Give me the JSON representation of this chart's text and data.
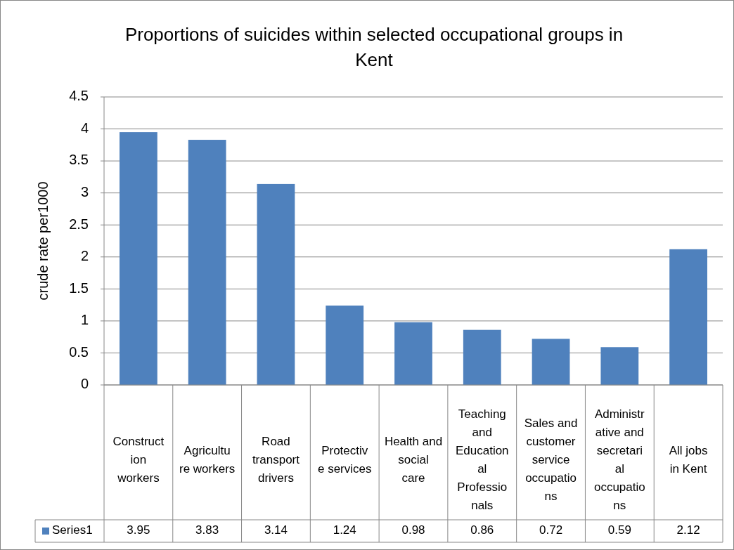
{
  "chart_data": {
    "type": "bar",
    "title": "Proportions of suicides within selected occupational groups in Kent",
    "ylabel": "crude rate per1000",
    "categories": [
      "Construction workers",
      "Agriculture workers",
      "Road transport drivers",
      "Protective services",
      "Health and social care",
      "Teaching and Educational Professionals",
      "Sales and customer service occupations",
      "Administrative and secretarial occupations",
      "All jobs in Kent"
    ],
    "series": [
      {
        "name": "Series1",
        "color": "#4f81bd",
        "values": [
          3.95,
          3.83,
          3.14,
          1.24,
          0.98,
          0.86,
          0.72,
          0.59,
          2.12
        ]
      }
    ],
    "ylim": [
      0,
      4.5
    ],
    "yticks": [
      0,
      0.5,
      1,
      1.5,
      2,
      2.5,
      3,
      3.5,
      4,
      4.5
    ],
    "grid": "y",
    "data_labels": true
  }
}
